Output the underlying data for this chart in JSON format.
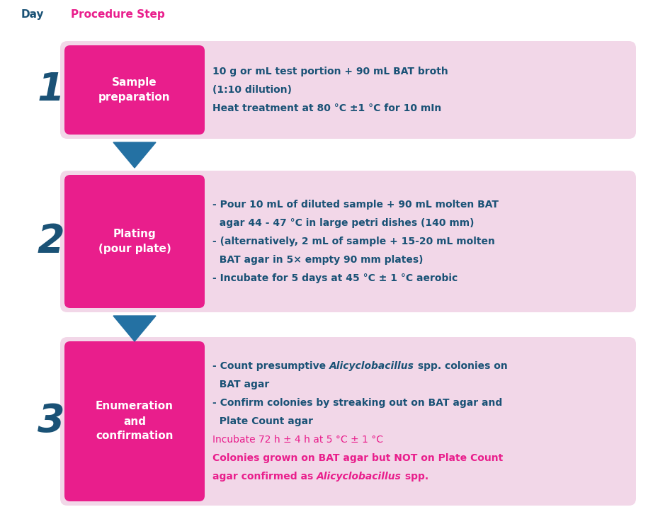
{
  "bg_color": "#ffffff",
  "header_day_color": "#1a5276",
  "header_step_color": "#e91e8c",
  "day_number_color": "#1a5276",
  "arrow_color": "#2471a3",
  "label_bg_color": "#e91e8c",
  "box_bg_color": "#f2d7e8",
  "label_text_color": "#ffffff",
  "desc_text_color": "#1a5276",
  "incubate_text_color": "#e91e8c",
  "steps": [
    {
      "day": "1",
      "label": "Sample\npreparation",
      "desc_segments": [
        [
          {
            "text": "10 g or mL test portion + 90 mL BAT broth",
            "style": "normal"
          }
        ],
        [
          {
            "text": "(1:10 dilution)",
            "style": "normal"
          }
        ],
        [
          {
            "text": "Heat treatment at 80 °C ±1 °C for 10 mIn",
            "style": "normal"
          }
        ]
      ]
    },
    {
      "day": "2",
      "label": "Plating\n(pour plate)",
      "desc_segments": [
        [
          {
            "text": "- Pour 10 mL of diluted sample + 90 mL molten BAT",
            "style": "normal"
          }
        ],
        [
          {
            "text": "  agar 44 - 47 °C in large petri dishes (140 mm)",
            "style": "normal"
          }
        ],
        [
          {
            "text": "- (alternatively, 2 mL of sample + 15-20 mL molten",
            "style": "normal"
          }
        ],
        [
          {
            "text": "  BAT agar in 5× empty 90 mm plates)",
            "style": "normal"
          }
        ],
        [
          {
            "text": "- Incubate for 5 days at 45 °C ± 1 °C aerobic",
            "style": "normal"
          }
        ]
      ]
    },
    {
      "day": "3",
      "label": "Enumeration\nand\nconfirmation",
      "desc_segments": [
        [
          {
            "text": "- Count presumptive ",
            "style": "normal"
          },
          {
            "text": "Alicyclobacillus",
            "style": "italic"
          },
          {
            "text": " spp. colonies on",
            "style": "normal"
          }
        ],
        [
          {
            "text": "  BAT agar",
            "style": "normal"
          }
        ],
        [
          {
            "text": "- Confirm colonies by streaking out on BAT agar and",
            "style": "normal"
          }
        ],
        [
          {
            "text": "  Plate Count agar",
            "style": "normal"
          }
        ],
        [
          {
            "text": "Incubate 72 h ± 4 h at 5 °C ± 1 °C",
            "style": "incubate"
          }
        ],
        [
          {
            "text": "Colonies grown on BAT agar but NOT on Plate Count",
            "style": "incubate_bold"
          }
        ],
        [
          {
            "text": "agar confirmed as ",
            "style": "incubate_bold"
          },
          {
            "text": "Alicyclobacillus",
            "style": "incubate_bold_italic"
          },
          {
            "text": " spp.",
            "style": "incubate_bold"
          }
        ]
      ]
    }
  ]
}
